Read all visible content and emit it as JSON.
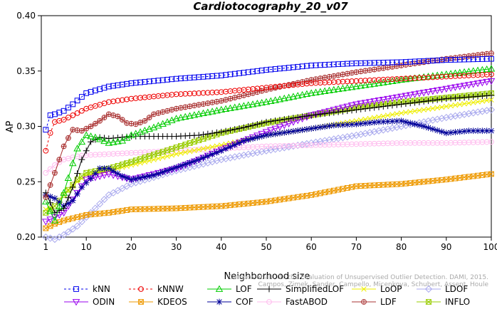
{
  "chart_data": {
    "type": "line",
    "title": "Cardiotocography_20_v07",
    "xlabel": "Neighborhood size",
    "ylabel": "AP",
    "xlim": [
      0,
      100
    ],
    "ylim": [
      0.2,
      0.4
    ],
    "xticks": [
      1,
      10,
      20,
      30,
      40,
      50,
      60,
      70,
      80,
      90,
      100
    ],
    "yticks": [
      0.2,
      0.25,
      0.3,
      0.35,
      0.4
    ],
    "ytick_labels": [
      "0.20",
      "0.25",
      "0.30",
      "0.35",
      "0.40"
    ],
    "grid": false,
    "legend_position": "bottom",
    "attribution": [
      "Campos et al.: On the Evaluation of Unsupervised Outlier Detection. DAMI, 2015.",
      "Campos, Zimek, Sander, Campello, Micenkova, Schubert, Assent, Houle"
    ],
    "series": [
      {
        "name": "kNN",
        "color": "#0000ee",
        "marker": "square",
        "line": "dashed",
        "k": [
          1,
          2,
          3,
          5,
          7,
          10,
          15,
          20,
          30,
          40,
          50,
          60,
          70,
          80,
          90,
          100
        ],
        "values": [
          0.297,
          0.31,
          0.311,
          0.314,
          0.32,
          0.33,
          0.336,
          0.339,
          0.343,
          0.346,
          0.351,
          0.355,
          0.357,
          0.358,
          0.36,
          0.361
        ]
      },
      {
        "name": "kNNW",
        "color": "#ee0000",
        "marker": "circle",
        "line": "dashed",
        "k": [
          1,
          2,
          3,
          5,
          7,
          10,
          15,
          20,
          30,
          40,
          50,
          60,
          70,
          80,
          90,
          100
        ],
        "values": [
          0.278,
          0.294,
          0.304,
          0.306,
          0.31,
          0.316,
          0.322,
          0.325,
          0.329,
          0.331,
          0.335,
          0.339,
          0.341,
          0.343,
          0.345,
          0.347
        ]
      },
      {
        "name": "LOF",
        "color": "#00cc00",
        "marker": "triangle-up",
        "line": "solid",
        "k": [
          1,
          3,
          5,
          8,
          10,
          12,
          15,
          18,
          20,
          25,
          30,
          40,
          50,
          60,
          70,
          80,
          90,
          100
        ],
        "values": [
          0.232,
          0.215,
          0.24,
          0.28,
          0.292,
          0.29,
          0.285,
          0.287,
          0.292,
          0.299,
          0.307,
          0.315,
          0.322,
          0.33,
          0.336,
          0.342,
          0.347,
          0.352
        ]
      },
      {
        "name": "SimplifiedLOF",
        "color": "#000000",
        "marker": "plus",
        "line": "solid",
        "k": [
          1,
          3,
          5,
          7,
          9,
          11,
          13,
          15,
          20,
          25,
          30,
          35,
          40,
          45,
          50,
          60,
          70,
          80,
          90,
          100
        ],
        "values": [
          0.24,
          0.222,
          0.226,
          0.245,
          0.27,
          0.286,
          0.29,
          0.289,
          0.291,
          0.291,
          0.291,
          0.292,
          0.295,
          0.299,
          0.304,
          0.31,
          0.315,
          0.32,
          0.325,
          0.328
        ]
      },
      {
        "name": "LoOP",
        "color": "#eeee00",
        "marker": "x",
        "line": "solid",
        "k": [
          1,
          3,
          5,
          8,
          10,
          15,
          20,
          30,
          40,
          50,
          60,
          70,
          80,
          90,
          100
        ],
        "values": [
          0.225,
          0.228,
          0.238,
          0.25,
          0.256,
          0.26,
          0.265,
          0.275,
          0.283,
          0.292,
          0.298,
          0.305,
          0.312,
          0.318,
          0.324
        ]
      },
      {
        "name": "LDOF",
        "color": "#aaaaee",
        "marker": "diamond",
        "line": "solid",
        "k": [
          1,
          3,
          5,
          8,
          10,
          15,
          20,
          30,
          40,
          50,
          60,
          70,
          80,
          90,
          100
        ],
        "values": [
          0.2,
          0.198,
          0.202,
          0.21,
          0.218,
          0.238,
          0.248,
          0.26,
          0.27,
          0.278,
          0.285,
          0.292,
          0.3,
          0.308,
          0.315
        ]
      },
      {
        "name": "ODIN",
        "color": "#9900ee",
        "marker": "triangle-down",
        "line": "solid",
        "k": [
          1,
          3,
          5,
          8,
          10,
          15,
          20,
          25,
          30,
          35,
          40,
          50,
          60,
          70,
          80,
          90,
          100
        ],
        "values": [
          0.214,
          0.218,
          0.222,
          0.24,
          0.252,
          0.257,
          0.252,
          0.257,
          0.262,
          0.27,
          0.279,
          0.295,
          0.31,
          0.32,
          0.327,
          0.334,
          0.341
        ]
      },
      {
        "name": "KDEOS",
        "color": "#ee9900",
        "marker": "boxed-x",
        "line": "solid",
        "k": [
          1,
          3,
          5,
          8,
          10,
          15,
          20,
          30,
          40,
          50,
          60,
          70,
          80,
          90,
          100
        ],
        "values": [
          0.208,
          0.212,
          0.215,
          0.218,
          0.22,
          0.222,
          0.225,
          0.226,
          0.228,
          0.232,
          0.238,
          0.246,
          0.248,
          0.252,
          0.257
        ]
      },
      {
        "name": "COF",
        "color": "#000099",
        "marker": "asterisk",
        "line": "solid",
        "k": [
          1,
          3,
          5,
          7,
          9,
          11,
          13,
          15,
          18,
          20,
          25,
          30,
          35,
          40,
          45,
          50,
          55,
          60,
          65,
          70,
          75,
          80,
          85,
          90,
          95,
          100
        ],
        "values": [
          0.238,
          0.235,
          0.228,
          0.233,
          0.245,
          0.253,
          0.262,
          0.262,
          0.255,
          0.252,
          0.256,
          0.263,
          0.27,
          0.278,
          0.287,
          0.292,
          0.295,
          0.298,
          0.301,
          0.302,
          0.304,
          0.305,
          0.3,
          0.294,
          0.296,
          0.296
        ]
      },
      {
        "name": "FastABOD",
        "color": "#ffbbee",
        "marker": "circle",
        "line": "solid",
        "k": [
          1,
          3,
          5,
          8,
          10,
          15,
          20,
          30,
          40,
          50,
          60,
          70,
          80,
          90,
          100
        ],
        "values": [
          0.258,
          0.265,
          0.27,
          0.273,
          0.274,
          0.275,
          0.276,
          0.278,
          0.28,
          0.282,
          0.283,
          0.284,
          0.285,
          0.285,
          0.286
        ]
      },
      {
        "name": "LDF",
        "color": "#aa3333",
        "marker": "circle-plus",
        "line": "solid",
        "k": [
          1,
          3,
          5,
          7,
          9,
          11,
          13,
          15,
          17,
          19,
          21,
          23,
          25,
          30,
          40,
          50,
          60,
          70,
          80,
          90,
          100
        ],
        "values": [
          0.236,
          0.258,
          0.282,
          0.297,
          0.296,
          0.3,
          0.305,
          0.311,
          0.309,
          0.303,
          0.302,
          0.305,
          0.311,
          0.316,
          0.323,
          0.333,
          0.342,
          0.349,
          0.355,
          0.361,
          0.366
        ]
      },
      {
        "name": "INFLO",
        "color": "#99cc00",
        "marker": "boxed-hourglass",
        "line": "solid",
        "k": [
          1,
          3,
          5,
          8,
          10,
          15,
          20,
          30,
          40,
          50,
          60,
          70,
          80,
          90,
          100
        ],
        "values": [
          0.222,
          0.228,
          0.238,
          0.252,
          0.258,
          0.262,
          0.268,
          0.281,
          0.294,
          0.303,
          0.31,
          0.317,
          0.322,
          0.326,
          0.33
        ]
      }
    ]
  }
}
